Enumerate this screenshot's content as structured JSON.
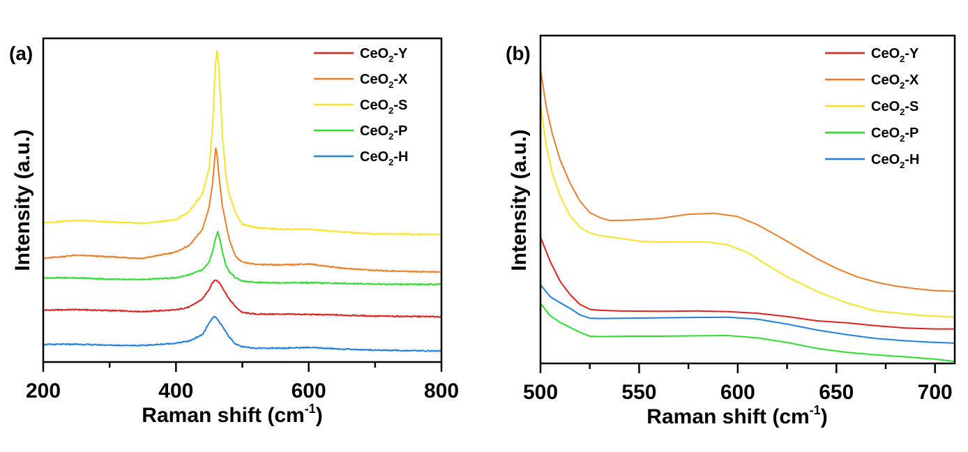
{
  "chart_data": [
    {
      "type": "line",
      "panel_label": "(a)",
      "title": "",
      "xlabel": "Raman shift (cm",
      "xlabel_sup": "-1",
      "xlabel_end": ")",
      "ylabel": "Intensity (a.u.)",
      "xlim": [
        200,
        800
      ],
      "ylim": [
        0,
        100
      ],
      "xticks": [
        200,
        400,
        600,
        800
      ],
      "xticks_minor": [
        300,
        500,
        700
      ],
      "yticks": [],
      "grid": false,
      "legend_position": "top-right",
      "series": [
        {
          "name": "CeO2-Y",
          "label_main": "CeO",
          "label_sub": "2",
          "label_suffix": "-Y",
          "color": "#e2201c",
          "x": [
            200,
            250,
            300,
            350,
            400,
            420,
            440,
            450,
            455,
            460,
            465,
            470,
            480,
            490,
            500,
            520,
            560,
            600,
            650,
            700,
            750,
            800
          ],
          "y": [
            16,
            16.2,
            15.9,
            15.6,
            16.1,
            17,
            19.5,
            22.5,
            24.6,
            25.4,
            24.6,
            23,
            19.5,
            17,
            15.3,
            14.8,
            14.8,
            14.7,
            14.5,
            14.2,
            14.1,
            14
          ]
        },
        {
          "name": "CeO2-X",
          "label_main": "CeO",
          "label_sub": "2",
          "label_suffix": "-X",
          "color": "#f07d25",
          "x": [
            200,
            250,
            300,
            350,
            400,
            420,
            440,
            450,
            455,
            458,
            460,
            462,
            465,
            470,
            480,
            490,
            500,
            520,
            560,
            600,
            650,
            700,
            750,
            800
          ],
          "y": [
            32,
            33,
            32.5,
            32,
            34,
            36,
            41,
            48,
            55,
            62,
            66,
            64,
            57,
            48,
            38,
            32.5,
            30.8,
            30.2,
            30,
            30.3,
            29,
            28.3,
            28,
            27.8
          ]
        },
        {
          "name": "CeO2-S",
          "label_main": "CeO",
          "label_sub": "2",
          "label_suffix": "-S",
          "color": "#f8e423",
          "x": [
            200,
            250,
            300,
            350,
            400,
            420,
            440,
            450,
            455,
            458,
            460,
            462,
            464,
            467,
            470,
            475,
            480,
            490,
            500,
            520,
            560,
            600,
            650,
            700,
            750,
            800
          ],
          "y": [
            43,
            43.8,
            43.3,
            42.8,
            44,
            46.5,
            52,
            60,
            72,
            86,
            93,
            96,
            93,
            82,
            70,
            58,
            52,
            46,
            42.6,
            41.5,
            41,
            41,
            40.2,
            39.6,
            39.5,
            39.4
          ]
        },
        {
          "name": "CeO2-P",
          "label_main": "CeO",
          "label_sub": "2",
          "label_suffix": "-P",
          "color": "#2ae02a",
          "x": [
            200,
            250,
            300,
            350,
            400,
            420,
            440,
            450,
            455,
            460,
            463,
            466,
            470,
            475,
            480,
            490,
            500,
            520,
            560,
            600,
            650,
            700,
            750,
            800
          ],
          "y": [
            26,
            26,
            25.6,
            25.5,
            26,
            27,
            28.5,
            31,
            34,
            38.5,
            40.3,
            38,
            34,
            30,
            28,
            26,
            25,
            24.6,
            24.5,
            24.5,
            24.3,
            24.1,
            24,
            24
          ]
        },
        {
          "name": "CeO2-H",
          "label_main": "CeO",
          "label_sub": "2",
          "label_suffix": "-H",
          "color": "#1f7fe3",
          "x": [
            200,
            250,
            300,
            350,
            400,
            420,
            440,
            450,
            455,
            458,
            462,
            470,
            480,
            490,
            500,
            520,
            560,
            600,
            650,
            700,
            750,
            800
          ],
          "y": [
            5.4,
            5.5,
            5.2,
            5.1,
            5.8,
            6.5,
            8.5,
            12,
            13.6,
            14,
            13.3,
            11,
            7.8,
            5.5,
            4.7,
            4.3,
            4.3,
            4.5,
            4,
            3.7,
            3.5,
            3.4
          ]
        }
      ]
    },
    {
      "type": "line",
      "panel_label": "(b)",
      "title": "",
      "xlabel": "Raman shift (cm",
      "xlabel_sup": "-1",
      "xlabel_end": ")",
      "ylabel": "Intensity (a.u.)",
      "xlim": [
        500,
        710
      ],
      "ylim": [
        0,
        100
      ],
      "xticks": [
        500,
        550,
        600,
        650,
        700
      ],
      "xticks_minor": [
        525,
        575,
        625,
        675
      ],
      "yticks": [],
      "grid": false,
      "legend_position": "top-right",
      "series": [
        {
          "name": "CeO2-Y",
          "label_main": "CeO",
          "label_sub": "2",
          "label_suffix": "-Y",
          "color": "#e2201c",
          "x": [
            500,
            505,
            510,
            515,
            520,
            525,
            530,
            540,
            560,
            580,
            595,
            610,
            625,
            640,
            655,
            670,
            685,
            700,
            710
          ],
          "y": [
            38.5,
            31,
            25,
            21,
            18,
            16.5,
            16.2,
            16,
            15.9,
            16,
            15.8,
            15.3,
            14.3,
            13,
            12.4,
            11.5,
            10.8,
            10.5,
            10.5
          ]
        },
        {
          "name": "CeO2-X",
          "label_main": "CeO",
          "label_sub": "2",
          "label_suffix": "-X",
          "color": "#f07d25",
          "x": [
            500,
            503,
            506,
            510,
            515,
            520,
            525,
            530,
            535,
            545,
            560,
            575,
            588,
            600,
            610,
            620,
            630,
            640,
            650,
            660,
            670,
            680,
            690,
            700,
            710
          ],
          "y": [
            89.6,
            78,
            70,
            62,
            55,
            49.5,
            46,
            44.5,
            43.6,
            43.7,
            44.2,
            45.5,
            45.8,
            44.8,
            42.3,
            39,
            35.5,
            32,
            29,
            26.5,
            24.8,
            23.6,
            22.8,
            22.2,
            22
          ]
        },
        {
          "name": "CeO2-S",
          "label_main": "CeO",
          "label_sub": "2",
          "label_suffix": "-S",
          "color": "#f8e423",
          "x": [
            500,
            503,
            506,
            510,
            515,
            520,
            525,
            530,
            540,
            550,
            560,
            575,
            585,
            595,
            605,
            615,
            625,
            640,
            655,
            670,
            680,
            690,
            700,
            710
          ],
          "y": [
            79,
            66,
            58,
            51,
            45,
            41.5,
            39.8,
            39,
            38.2,
            37.3,
            37,
            37.1,
            37,
            36.2,
            33.8,
            30,
            26.4,
            22,
            18.5,
            16,
            15.4,
            14.8,
            14.4,
            14.2
          ]
        },
        {
          "name": "CeO2-P",
          "label_main": "CeO",
          "label_sub": "2",
          "label_suffix": "-P",
          "color": "#2ae02a",
          "x": [
            500,
            505,
            510,
            515,
            520,
            525,
            530,
            545,
            560,
            575,
            595,
            610,
            625,
            640,
            655,
            670,
            685,
            700,
            710
          ],
          "y": [
            18.3,
            14.5,
            12.5,
            11,
            9.5,
            8.3,
            8.2,
            8.3,
            8.3,
            8.4,
            8.5,
            7.8,
            6.4,
            4.6,
            3.4,
            2.6,
            2,
            1.3,
            0.6
          ]
        },
        {
          "name": "CeO2-H",
          "label_main": "CeO",
          "label_sub": "2",
          "label_suffix": "-H",
          "color": "#1f7fe3",
          "x": [
            500,
            505,
            510,
            515,
            520,
            525,
            530,
            545,
            560,
            575,
            595,
            610,
            625,
            640,
            655,
            670,
            685,
            700,
            710
          ],
          "y": [
            24,
            20.3,
            18.5,
            16.8,
            14.8,
            13.8,
            13.7,
            13.8,
            13.9,
            14,
            14.1,
            13.5,
            12,
            10.2,
            8.8,
            7.6,
            6.9,
            6.4,
            6.2
          ]
        }
      ]
    }
  ]
}
